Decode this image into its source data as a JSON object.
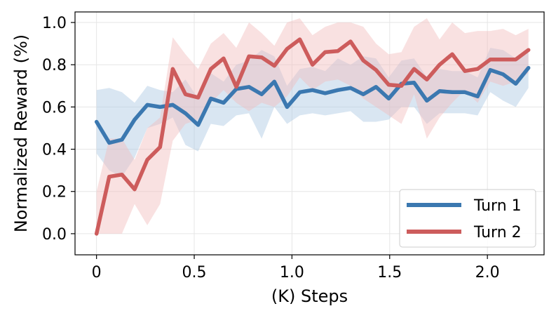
{
  "chart_data": {
    "type": "line",
    "title": "",
    "xlabel": "(K) Steps",
    "ylabel": "Normalized Reward (%)",
    "xlim": [
      -0.11,
      2.29
    ],
    "ylim": [
      -0.1,
      1.05
    ],
    "xticks": [
      0,
      0.5,
      1.0,
      1.5,
      2.0
    ],
    "xtick_labels": [
      "0",
      "0.5",
      "1.0",
      "1.5",
      "2.0"
    ],
    "yticks": [
      0.0,
      0.2,
      0.4,
      0.6,
      0.8,
      1.0
    ],
    "ytick_labels": [
      "0.0",
      "0.2",
      "0.4",
      "0.6",
      "0.8",
      "1.0"
    ],
    "grid": true,
    "legend_position": "bottom-right",
    "x": [
      0,
      0.065,
      0.13,
      0.195,
      0.26,
      0.325,
      0.39,
      0.455,
      0.52,
      0.585,
      0.65,
      0.715,
      0.78,
      0.845,
      0.91,
      0.975,
      1.04,
      1.105,
      1.17,
      1.235,
      1.3,
      1.365,
      1.43,
      1.495,
      1.56,
      1.625,
      1.69,
      1.755,
      1.82,
      1.885,
      1.95,
      2.015,
      2.08,
      2.145,
      2.21
    ],
    "series": [
      {
        "name": "Turn 1",
        "color": "#3b78b0",
        "band_color": "#aac8e3",
        "values": [
          0.53,
          0.43,
          0.445,
          0.54,
          0.61,
          0.6,
          0.61,
          0.57,
          0.515,
          0.64,
          0.62,
          0.685,
          0.695,
          0.66,
          0.72,
          0.6,
          0.67,
          0.68,
          0.665,
          0.68,
          0.69,
          0.66,
          0.695,
          0.64,
          0.71,
          0.715,
          0.63,
          0.675,
          0.67,
          0.67,
          0.65,
          0.775,
          0.755,
          0.71,
          0.785
        ],
        "lower": [
          0.38,
          0.3,
          0.27,
          0.36,
          0.5,
          0.52,
          0.55,
          0.42,
          0.39,
          0.52,
          0.51,
          0.56,
          0.57,
          0.45,
          0.6,
          0.52,
          0.56,
          0.57,
          0.56,
          0.57,
          0.58,
          0.53,
          0.53,
          0.54,
          0.6,
          0.6,
          0.52,
          0.57,
          0.57,
          0.57,
          0.56,
          0.67,
          0.63,
          0.6,
          0.69
        ],
        "upper": [
          0.68,
          0.69,
          0.67,
          0.62,
          0.7,
          0.68,
          0.67,
          0.73,
          0.64,
          0.76,
          0.72,
          0.8,
          0.82,
          0.87,
          0.84,
          0.7,
          0.78,
          0.79,
          0.77,
          0.83,
          0.8,
          0.84,
          0.83,
          0.74,
          0.82,
          0.83,
          0.74,
          0.78,
          0.77,
          0.77,
          0.74,
          0.88,
          0.87,
          0.83,
          0.88
        ]
      },
      {
        "name": "Turn 2",
        "color": "#cd5c5c",
        "band_color": "#f2bcbc",
        "values": [
          0.0,
          0.27,
          0.28,
          0.21,
          0.35,
          0.41,
          0.78,
          0.66,
          0.645,
          0.78,
          0.83,
          0.695,
          0.84,
          0.835,
          0.795,
          0.875,
          0.92,
          0.8,
          0.86,
          0.865,
          0.91,
          0.82,
          0.775,
          0.705,
          0.7,
          0.78,
          0.73,
          0.8,
          0.85,
          0.77,
          0.78,
          0.825,
          0.825,
          0.825,
          0.87
        ],
        "lower": [
          0.0,
          0.0,
          0.0,
          0.14,
          0.04,
          0.14,
          0.44,
          0.52,
          0.54,
          0.62,
          0.68,
          0.62,
          0.58,
          0.62,
          0.6,
          0.65,
          0.74,
          0.68,
          0.72,
          0.73,
          0.7,
          0.64,
          0.6,
          0.56,
          0.52,
          0.66,
          0.45,
          0.55,
          0.62,
          0.68,
          0.62,
          0.72,
          0.7,
          0.72,
          0.76
        ],
        "upper": [
          0.2,
          0.45,
          0.45,
          0.35,
          0.5,
          0.55,
          0.93,
          0.85,
          0.78,
          0.9,
          0.95,
          0.88,
          1.0,
          0.95,
          0.89,
          1.0,
          1.02,
          0.94,
          0.98,
          1.0,
          1.0,
          0.98,
          0.9,
          0.85,
          0.86,
          0.98,
          1.02,
          0.92,
          1.0,
          0.95,
          0.96,
          0.96,
          0.97,
          0.94,
          0.97
        ]
      }
    ]
  }
}
